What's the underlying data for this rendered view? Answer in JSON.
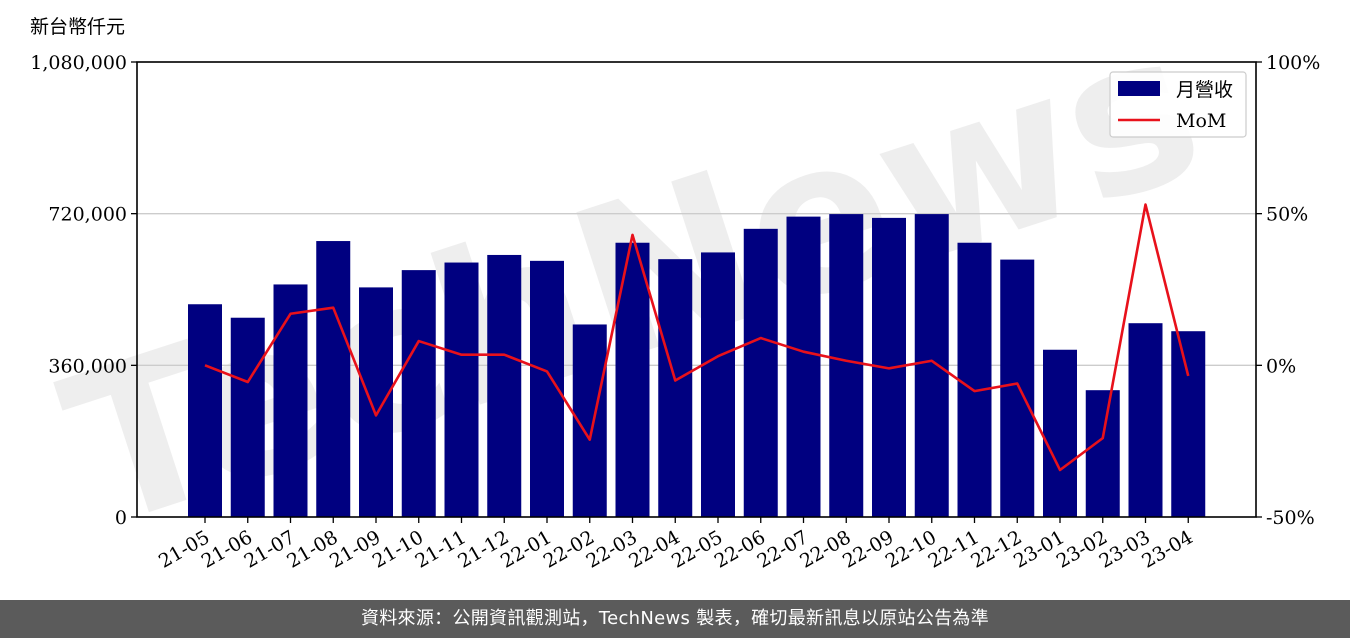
{
  "unit_label": "新台幣仟元",
  "footer_text": "資料來源：公開資訊觀測站，TechNews 製表，確切最新訊息以原站公告為準",
  "watermark_text": "TechNews",
  "colors": {
    "bar": "#000080",
    "line": "#e8111b",
    "grid": "#cccccc",
    "footer_bg": "#5b5b5b",
    "watermark": "#d9d9d9"
  },
  "chart_data": {
    "type": "bar",
    "categories": [
      "21-05",
      "21-06",
      "21-07",
      "21-08",
      "21-09",
      "21-10",
      "21-11",
      "21-12",
      "22-01",
      "22-02",
      "22-03",
      "22-04",
      "22-05",
      "22-06",
      "22-07",
      "22-08",
      "22-09",
      "22-10",
      "22-11",
      "22-12",
      "23-01",
      "23-02",
      "23-03",
      "23-04"
    ],
    "series": [
      {
        "name": "月營收",
        "type": "bar",
        "axis": "left",
        "values": [
          505000,
          473000,
          552000,
          655000,
          545000,
          586000,
          604000,
          622000,
          608000,
          457000,
          651000,
          612000,
          628000,
          684000,
          713000,
          719000,
          710000,
          719000,
          651000,
          611000,
          397000,
          301000,
          460000,
          441000
        ]
      },
      {
        "name": "MoM",
        "type": "line",
        "axis": "right",
        "values": [
          0,
          -5.5,
          17,
          19,
          -16.5,
          8,
          3.5,
          3.5,
          -2,
          -24.5,
          43,
          -5,
          3,
          9,
          4.5,
          1.5,
          -1,
          1.5,
          -8.5,
          -6,
          -34.5,
          -24,
          53,
          -3.5
        ]
      }
    ],
    "y_left": {
      "range": [
        0,
        1080000
      ],
      "ticks": [
        0,
        360000,
        720000,
        1080000
      ],
      "tick_labels": [
        "0",
        "360,000",
        "720,000",
        "1,080,000"
      ]
    },
    "y_right": {
      "range": [
        -50,
        100
      ],
      "ticks": [
        -50,
        0,
        50,
        100
      ],
      "tick_labels": [
        "-50%",
        "0%",
        "50%",
        "100%"
      ]
    },
    "grid": true,
    "legend_position": "top-right"
  }
}
